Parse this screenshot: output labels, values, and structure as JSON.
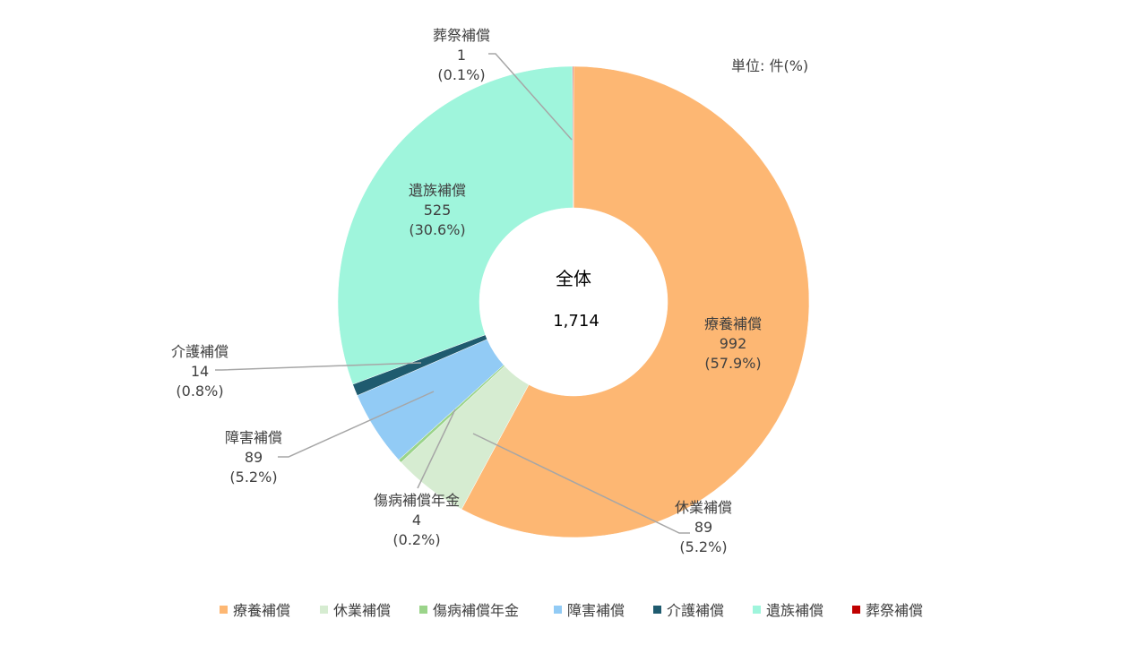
{
  "unit_label": "単位: 件(%)",
  "colors": {
    "療養補償": "#fdb773",
    "休業補償": "#d6ecd1",
    "傷病補償年金": "#9bd48a",
    "障害補償": "#92cbf5",
    "介護補償": "#1f5b6f",
    "遺族補償": "#9ff5dc",
    "葬祭補償": "#c00000"
  },
  "chart_data": {
    "type": "pie",
    "donut": true,
    "center": {
      "title": "全体",
      "value": "1,714"
    },
    "legend_position": "bottom",
    "slices": [
      {
        "name": "療養補償",
        "value": 992,
        "value_label": "992",
        "percent_label": "(57.9%)"
      },
      {
        "name": "休業補償",
        "value": 89,
        "value_label": "89",
        "percent_label": "(5.2%)"
      },
      {
        "name": "傷病補償年金",
        "value": 4,
        "value_label": "4",
        "percent_label": "(0.2%)"
      },
      {
        "name": "障害補償",
        "value": 89,
        "value_label": "89",
        "percent_label": "(5.2%)"
      },
      {
        "name": "介護補償",
        "value": 14,
        "value_label": "14",
        "percent_label": "(0.8%)"
      },
      {
        "name": "遺族補償",
        "value": 525,
        "value_label": "525",
        "percent_label": "(30.6%)"
      },
      {
        "name": "葬祭補償",
        "value": 1,
        "value_label": "1",
        "percent_label": "(0.1%)"
      }
    ],
    "total": 1714
  }
}
